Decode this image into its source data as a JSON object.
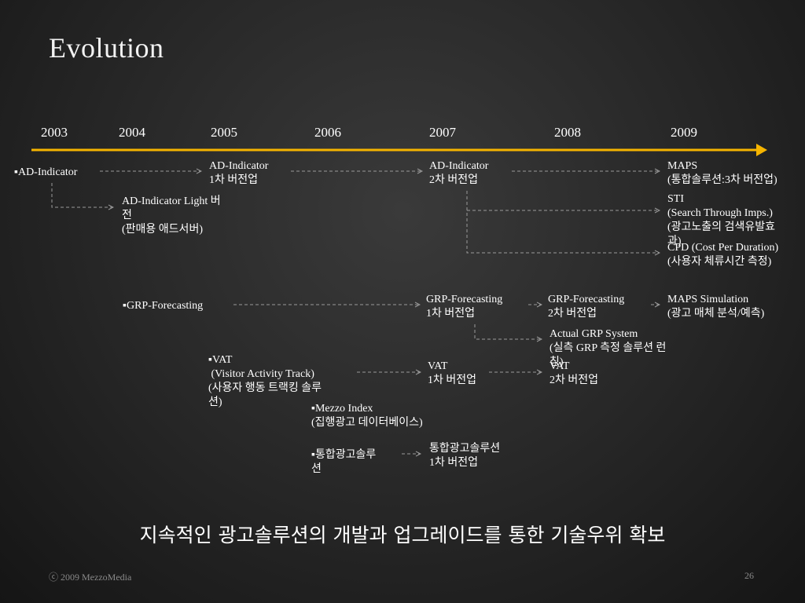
{
  "title": "Evolution",
  "years": [
    "2003",
    "2004",
    "2005",
    "2006",
    "2007",
    "2008",
    "2009"
  ],
  "nodes": {
    "ad_indicator": "▪AD-Indicator",
    "ad_ind_v1": [
      "AD-Indicator",
      "1차 버전업"
    ],
    "ad_ind_v2": [
      "AD-Indicator",
      "2차 버전업"
    ],
    "maps": [
      "MAPS",
      "(통합솔루션:3차 버전업)"
    ],
    "ad_light": [
      "AD-Indicator Light 버",
      "전",
      "(판매용 애드서버)"
    ],
    "sti": [
      "STI",
      "(Search Through Imps.)",
      "(광고노출의 검색유발효",
      "과)"
    ],
    "cpd": [
      "CPD (Cost Per Duration)",
      "(사용자 체류시간 측정)"
    ],
    "grp": "▪GRP-Forecasting",
    "grp_v1": [
      "GRP-Forecasting",
      "1차 버전업"
    ],
    "grp_v2": [
      "GRP-Forecasting",
      "2차 버전업"
    ],
    "maps_sim": [
      "MAPS Simulation",
      "(광고 매체 분석/예측)"
    ],
    "actual_grp": [
      "Actual GRP System",
      "(실측 GRP 측정 솔루션 런",
      "칭)"
    ],
    "vat": [
      "▪VAT",
      " (Visitor Activity Track)",
      "(사용자 행동 트랙킹 솔루",
      "션)"
    ],
    "vat_v1": [
      "VAT",
      "1차 버전업"
    ],
    "vat_v2": [
      "VAT",
      "2차 버전업"
    ],
    "mezzo_index": [
      "▪Mezzo Index",
      "(집행광고 데이터베이스)"
    ],
    "integrated": [
      "▪통합광고솔루",
      "션"
    ],
    "integrated_v1": [
      "통합광고솔루션",
      "1차 버전업"
    ]
  },
  "slogan": "지속적인 광고솔루션의 개발과 업그레이드를 통한 기술우위 확보",
  "footer": {
    "copyright": "ⓒ 2009 MezzoMedia",
    "page_number": "26"
  },
  "colors": {
    "timeline": "#f5b400",
    "connector": "#9a9a9a"
  }
}
